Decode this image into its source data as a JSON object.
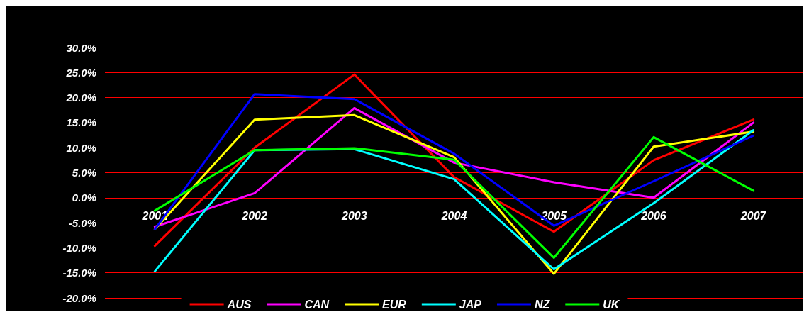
{
  "chart_data": {
    "type": "line",
    "categories": [
      "2001",
      "2002",
      "2003",
      "2004",
      "2005",
      "2006",
      "2007"
    ],
    "series": [
      {
        "name": "AUS",
        "color": "#ff0000",
        "values": [
          -9.6,
          10.0,
          24.6,
          4.1,
          -6.8,
          7.5,
          15.6
        ]
      },
      {
        "name": "CAN",
        "color": "#ff00ff",
        "values": [
          -5.8,
          0.9,
          17.9,
          7.0,
          3.1,
          0.0,
          15.0
        ]
      },
      {
        "name": "EUR",
        "color": "#ffff00",
        "values": [
          -6.3,
          15.6,
          16.5,
          8.1,
          -15.2,
          10.2,
          13.2
        ]
      },
      {
        "name": "JAP",
        "color": "#00ffff",
        "values": [
          -14.7,
          9.5,
          9.7,
          3.7,
          -14.3,
          -1.1,
          13.5
        ]
      },
      {
        "name": "NZ",
        "color": "#0000ff",
        "values": [
          -6.3,
          20.7,
          19.7,
          8.8,
          -5.6,
          3.3,
          12.4
        ]
      },
      {
        "name": "UK",
        "color": "#00ff00",
        "values": [
          -2.6,
          9.5,
          9.9,
          7.6,
          -12.0,
          12.1,
          1.4
        ]
      }
    ],
    "ylim": [
      -20,
      30
    ],
    "yticks": [
      {
        "value": -20,
        "label": "-20.0%"
      },
      {
        "value": -15,
        "label": "-15.0%"
      },
      {
        "value": -10,
        "label": "-10.0%"
      },
      {
        "value": -5,
        "label": "-5.0%"
      },
      {
        "value": 0,
        "label": "0.0%"
      },
      {
        "value": 5,
        "label": "5.0%"
      },
      {
        "value": 10,
        "label": "10.0%"
      },
      {
        "value": 15,
        "label": "15.0%"
      },
      {
        "value": 20,
        "label": "20.0%"
      },
      {
        "value": 25,
        "label": "25.0%"
      },
      {
        "value": 30,
        "label": "30.0%"
      }
    ],
    "grid": "y",
    "legend": "bottom",
    "marker": "none",
    "line_style": "solid"
  }
}
